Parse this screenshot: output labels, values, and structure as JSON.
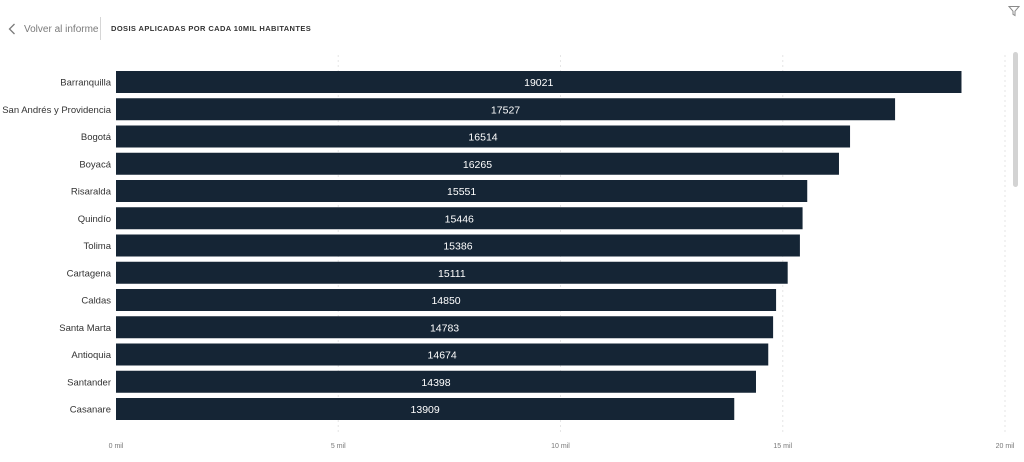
{
  "header": {
    "back_label": "Volver al informe",
    "title": "DOSIS APLICADAS POR CADA 10MIL HABITANTES"
  },
  "icons": {
    "back": "chevron-left-icon",
    "filter": "filter-icon"
  },
  "colors": {
    "bar": "#152535",
    "bar_label": "#ffffff",
    "category_text": "#333333",
    "tick_text": "#777777",
    "grid": "#e6e6e6"
  },
  "chart_data": {
    "type": "bar",
    "orientation": "horizontal",
    "categories": [
      "Barranquilla",
      "San Andrés y Providencia",
      "Bogotá",
      "Boyacá",
      "Risaralda",
      "Quindío",
      "Tolima",
      "Cartagena",
      "Caldas",
      "Santa Marta",
      "Antioquia",
      "Santander",
      "Casanare"
    ],
    "values": [
      19021,
      17527,
      16514,
      16265,
      15551,
      15446,
      15386,
      15111,
      14850,
      14783,
      14674,
      14398,
      13909
    ],
    "xlim": [
      0,
      20000
    ],
    "xticks": [
      0,
      5000,
      10000,
      15000,
      20000
    ],
    "xtick_labels": [
      "0 mil",
      "5 mil",
      "10 mil",
      "15 mil",
      "20 mil"
    ],
    "data_labels": true,
    "grid": true
  }
}
